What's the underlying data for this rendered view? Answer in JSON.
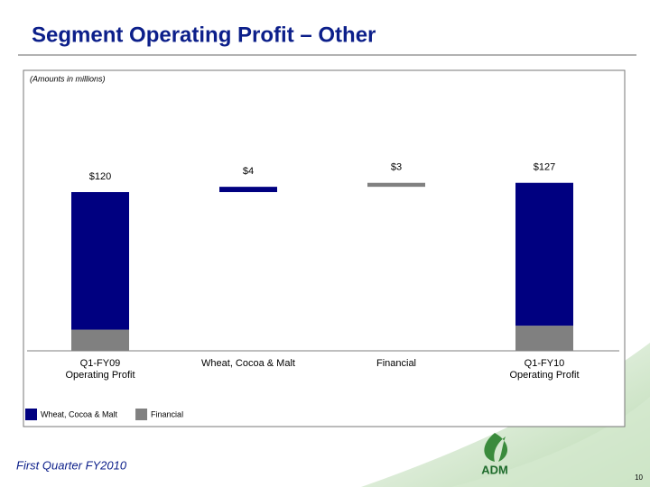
{
  "header": {
    "title": "Segment Operating Profit – Other"
  },
  "chart_data": {
    "type": "waterfall",
    "note": "(Amounts in millions)",
    "categories": [
      "Q1-FY09\nOperating Profit",
      "Wheat, Cocoa & Malt",
      "Financial",
      "Q1-FY10\nOperating Profit"
    ],
    "totals": [
      true,
      false,
      false,
      true
    ],
    "values": [
      120,
      4,
      3,
      127
    ],
    "value_labels": [
      "$120",
      "$4",
      "$3",
      "$127"
    ],
    "series": [
      {
        "name": "Wheat, Cocoa & Malt",
        "color": "#000080",
        "values": [
          104,
          4,
          null,
          108
        ]
      },
      {
        "name": "Financial",
        "color": "#808080",
        "values": [
          16,
          null,
          3,
          19
        ]
      }
    ],
    "ylim": [
      0,
      150
    ]
  },
  "footer": {
    "text": "First Quarter FY2010",
    "logo": "ADM",
    "page": "10"
  }
}
